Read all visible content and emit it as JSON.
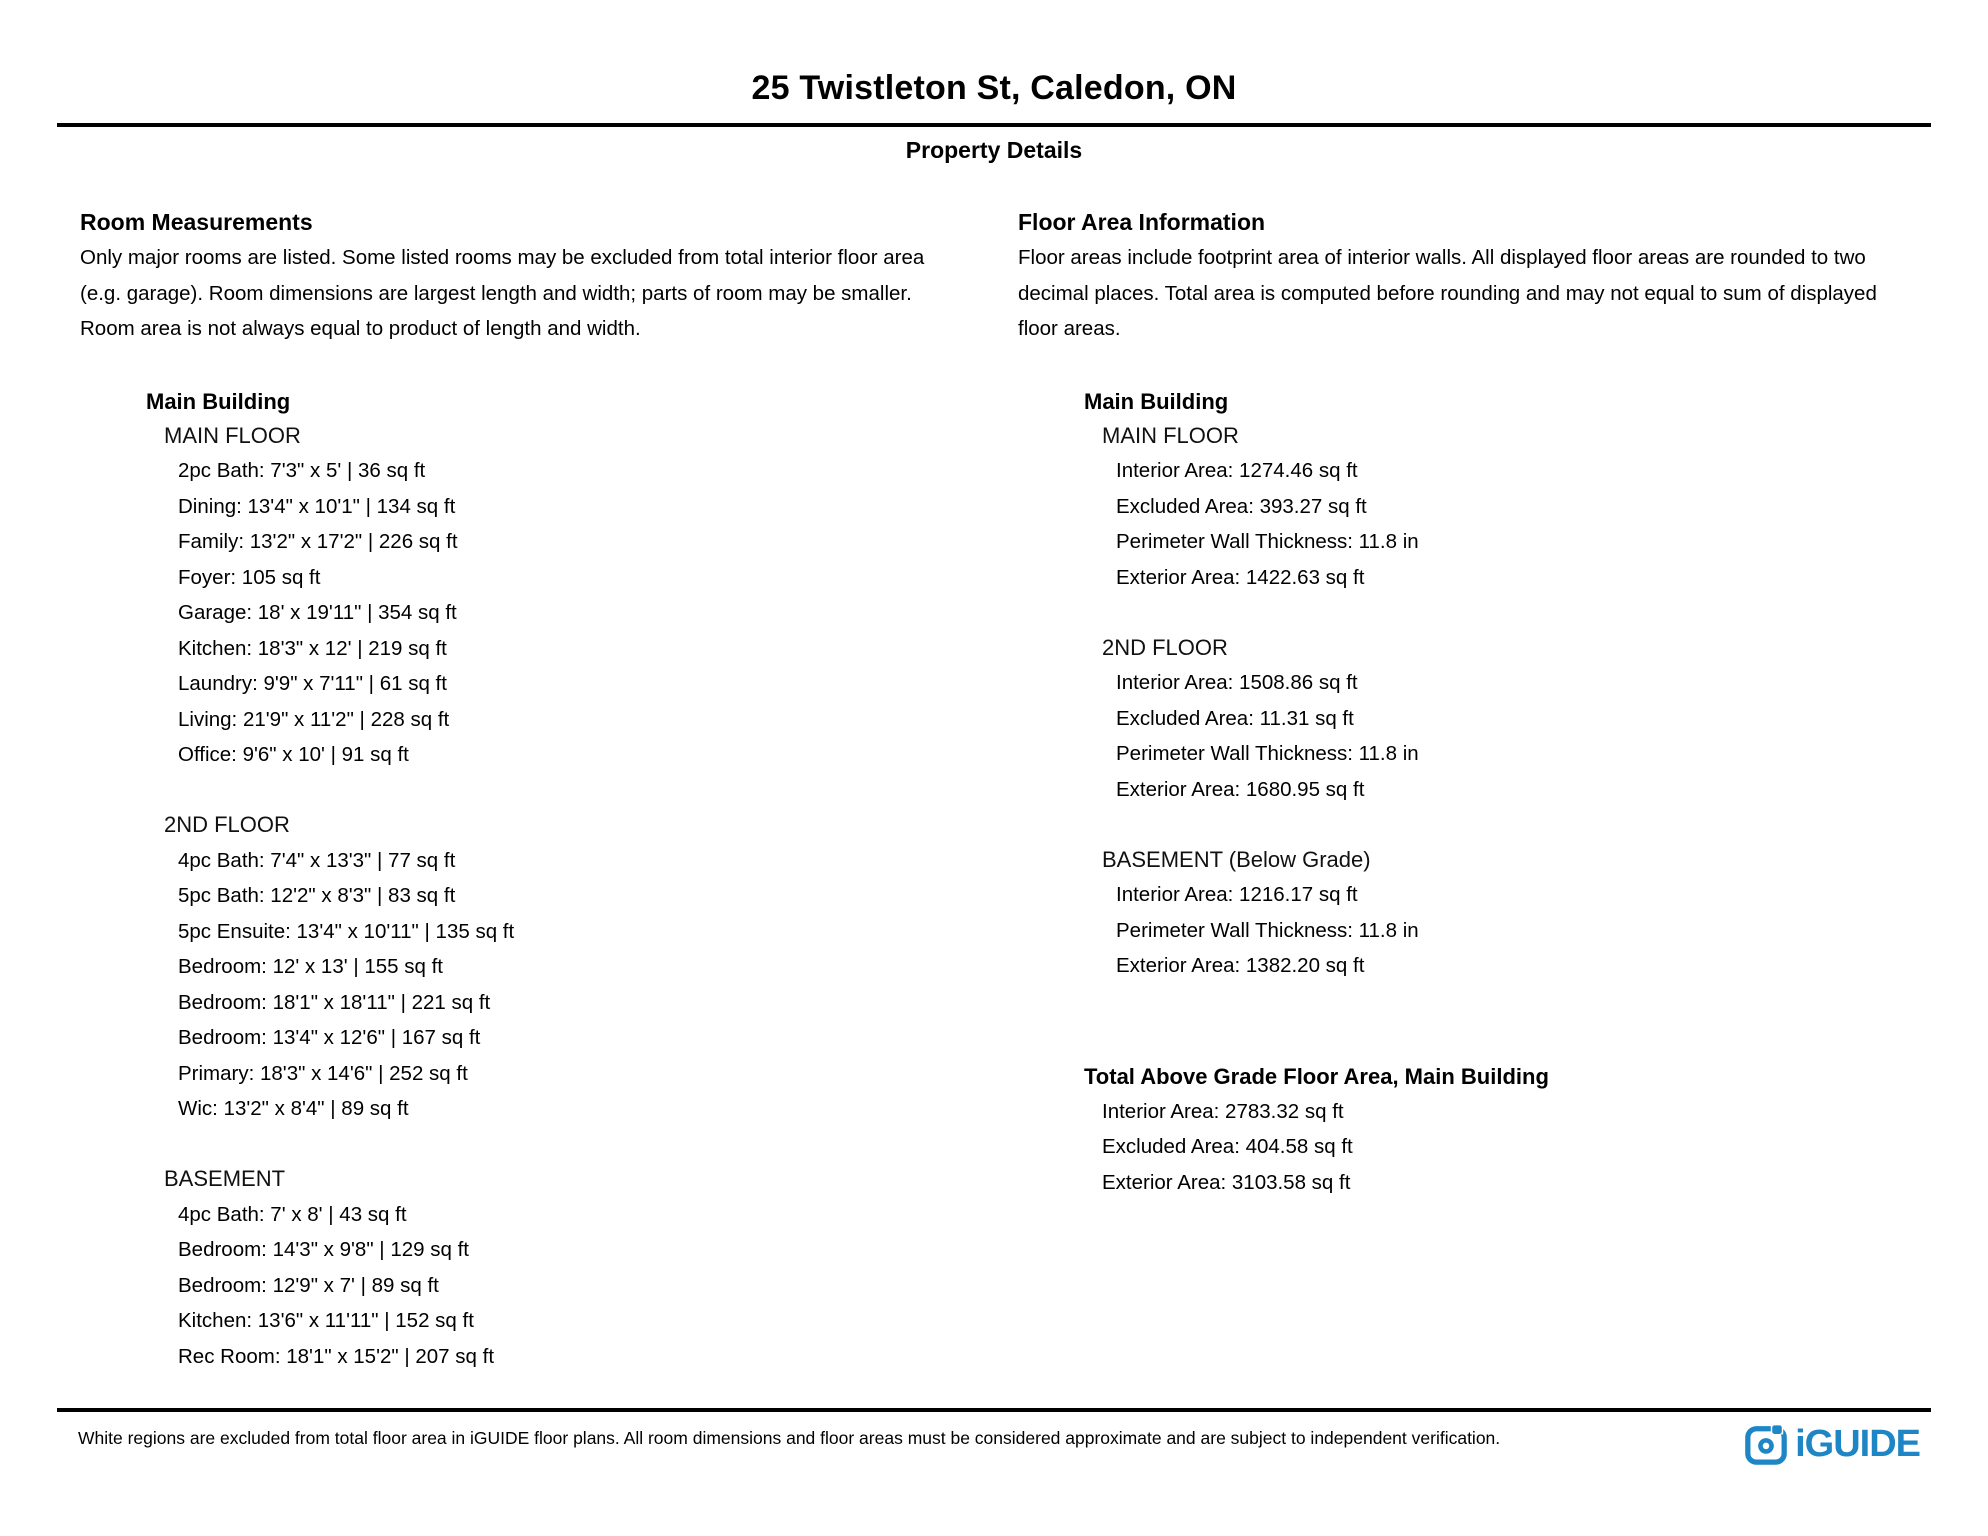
{
  "header": {
    "title": "25 Twistleton St, Caledon, ON",
    "subtitle": "Property Details"
  },
  "room_measurements": {
    "heading": "Room Measurements",
    "description_lines": [
      "Only major rooms are listed. Some listed rooms may be excluded from total interior floor area",
      "(e.g. garage). Room dimensions are largest length and width; parts of room may be smaller.",
      "Room area is not always equal to product of length and width."
    ],
    "building_name": "Main Building",
    "floors": [
      {
        "name": "MAIN FLOOR",
        "rooms": [
          "2pc Bath: 7'3\" x 5' | 36 sq ft",
          "Dining: 13'4\" x 10'1\" | 134 sq ft",
          "Family: 13'2\" x 17'2\" | 226 sq ft",
          "Foyer: 105 sq ft",
          "Garage: 18' x 19'11\" | 354 sq ft",
          "Kitchen: 18'3\" x 12' | 219 sq ft",
          "Laundry: 9'9\" x 7'11\" | 61 sq ft",
          "Living: 21'9\" x 11'2\" | 228 sq ft",
          "Office: 9'6\" x 10' | 91 sq ft"
        ]
      },
      {
        "name": "2ND FLOOR",
        "rooms": [
          "4pc Bath: 7'4\" x 13'3\" | 77 sq ft",
          "5pc Bath: 12'2\" x 8'3\" | 83 sq ft",
          "5pc Ensuite: 13'4\" x 10'11\" | 135 sq ft",
          "Bedroom: 12' x 13' | 155 sq ft",
          "Bedroom: 18'1\" x 18'11\" | 221 sq ft",
          "Bedroom: 13'4\" x 12'6\" | 167 sq ft",
          "Primary: 18'3\" x 14'6\" | 252 sq ft",
          "Wic: 13'2\" x 8'4\" | 89 sq ft"
        ]
      },
      {
        "name": "BASEMENT",
        "rooms": [
          "4pc Bath: 7' x 8' | 43 sq ft",
          "Bedroom: 14'3\" x 9'8\" | 129 sq ft",
          "Bedroom: 12'9\" x 7' | 89 sq ft",
          "Kitchen: 13'6\" x 11'11\" | 152 sq ft",
          "Rec Room: 18'1\" x 15'2\" | 207 sq ft"
        ]
      }
    ]
  },
  "floor_area_information": {
    "heading": "Floor Area Information",
    "description_lines": [
      "Floor areas include footprint area of interior walls. All displayed floor areas are rounded to two",
      "decimal places. Total area is computed before rounding and may not equal to sum of displayed",
      "floor areas."
    ],
    "building_name": "Main Building",
    "floors": [
      {
        "name": "MAIN FLOOR",
        "stats": [
          "Interior Area: 1274.46 sq ft",
          "Excluded Area: 393.27 sq ft",
          "Perimeter Wall Thickness: 11.8 in",
          "Exterior Area: 1422.63 sq ft"
        ]
      },
      {
        "name": "2ND FLOOR",
        "stats": [
          "Interior Area: 1508.86 sq ft",
          "Excluded Area: 11.31 sq ft",
          "Perimeter Wall Thickness: 11.8 in",
          "Exterior Area: 1680.95 sq ft"
        ]
      },
      {
        "name": "BASEMENT (Below Grade)",
        "stats": [
          "Interior Area: 1216.17 sq ft",
          "Perimeter Wall Thickness: 11.8 in",
          "Exterior Area: 1382.20 sq ft"
        ]
      }
    ],
    "total": {
      "heading": "Total Above Grade Floor Area, Main Building",
      "stats": [
        "Interior Area: 2783.32 sq ft",
        "Excluded Area: 404.58 sq ft",
        "Exterior Area: 3103.58 sq ft"
      ]
    }
  },
  "footer": {
    "disclaimer": "White regions are excluded from total floor area in iGUIDE floor plans. All room dimensions and floor areas must be considered approximate and are subject to independent verification.",
    "logo": {
      "text": "iGUIDE",
      "color": "#1e86c5"
    }
  }
}
